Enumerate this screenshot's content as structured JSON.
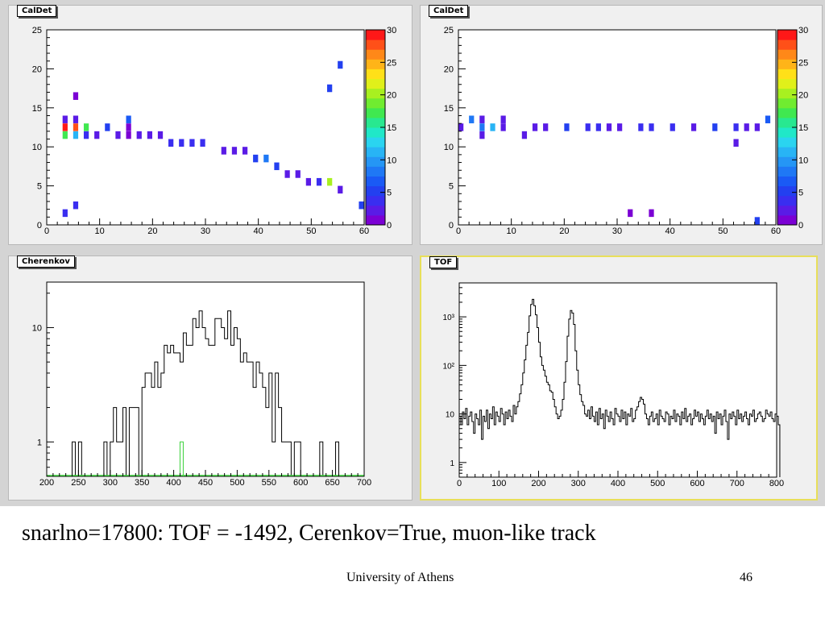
{
  "slide": {
    "caption": "snarlno=17800: TOF = -1492, Cerenkov=True, muon-like track",
    "institution": "University of Athens",
    "page_number": "46"
  },
  "chart_data": [
    {
      "type": "heatmap",
      "pad_title": "CalDet",
      "xlim": [
        0,
        60
      ],
      "ylim": [
        0,
        25
      ],
      "zlim": [
        0,
        30
      ],
      "x_ticks": [
        "0",
        "10",
        "20",
        "30",
        "40",
        "50",
        "60"
      ],
      "y_ticks": [
        "0",
        "5",
        "10",
        "15",
        "20",
        "25"
      ],
      "z_ticks": [
        "0",
        "5",
        "10",
        "15",
        "20",
        "25",
        "30"
      ],
      "palette": [
        "#7b00d4",
        "#5a1be6",
        "#3a2ef0",
        "#2340f0",
        "#1a5af5",
        "#1f78f5",
        "#2596f5",
        "#28b4f5",
        "#2ad4f0",
        "#20e8c8",
        "#28e890",
        "#40e850",
        "#70ec30",
        "#a8f020",
        "#e0f01a",
        "#ffe018",
        "#ffb418",
        "#ff8818",
        "#ff5018",
        "#ff1818"
      ],
      "cells": [
        {
          "x": 3.5,
          "y": 1.5,
          "z": 4
        },
        {
          "x": 5.5,
          "y": 2.5,
          "z": 4
        },
        {
          "x": 3.5,
          "y": 11.5,
          "z": 18
        },
        {
          "x": 3.5,
          "y": 12.5,
          "z": 30
        },
        {
          "x": 3.5,
          "y": 13.5,
          "z": 3
        },
        {
          "x": 5.5,
          "y": 11.5,
          "z": 12
        },
        {
          "x": 5.5,
          "y": 12.5,
          "z": 28
        },
        {
          "x": 5.5,
          "y": 13.5,
          "z": 3
        },
        {
          "x": 5.5,
          "y": 16.5,
          "z": 1
        },
        {
          "x": 7.5,
          "y": 11.5,
          "z": 4
        },
        {
          "x": 7.5,
          "y": 12.5,
          "z": 18
        },
        {
          "x": 9.5,
          "y": 11.5,
          "z": 3
        },
        {
          "x": 11.5,
          "y": 12.5,
          "z": 5
        },
        {
          "x": 13.5,
          "y": 11.5,
          "z": 2
        },
        {
          "x": 15.5,
          "y": 11.5,
          "z": 1
        },
        {
          "x": 15.5,
          "y": 12.5,
          "z": 1
        },
        {
          "x": 15.5,
          "y": 13.5,
          "z": 7
        },
        {
          "x": 17.5,
          "y": 11.5,
          "z": 3
        },
        {
          "x": 19.5,
          "y": 11.5,
          "z": 3
        },
        {
          "x": 21.5,
          "y": 11.5,
          "z": 2
        },
        {
          "x": 23.5,
          "y": 10.5,
          "z": 4
        },
        {
          "x": 25.5,
          "y": 10.5,
          "z": 4
        },
        {
          "x": 27.5,
          "y": 10.5,
          "z": 4
        },
        {
          "x": 29.5,
          "y": 10.5,
          "z": 4
        },
        {
          "x": 33.5,
          "y": 9.5,
          "z": 3
        },
        {
          "x": 35.5,
          "y": 9.5,
          "z": 3
        },
        {
          "x": 37.5,
          "y": 9.5,
          "z": 3
        },
        {
          "x": 39.5,
          "y": 8.5,
          "z": 5
        },
        {
          "x": 41.5,
          "y": 8.5,
          "z": 8
        },
        {
          "x": 43.5,
          "y": 7.5,
          "z": 5
        },
        {
          "x": 45.5,
          "y": 6.5,
          "z": 3
        },
        {
          "x": 47.5,
          "y": 6.5,
          "z": 3
        },
        {
          "x": 49.5,
          "y": 5.5,
          "z": 2
        },
        {
          "x": 51.5,
          "y": 5.5,
          "z": 4
        },
        {
          "x": 53.5,
          "y": 5.5,
          "z": 20
        },
        {
          "x": 55.5,
          "y": 4.5,
          "z": 3
        },
        {
          "x": 59.5,
          "y": 2.5,
          "z": 6
        },
        {
          "x": 53.5,
          "y": 17.5,
          "z": 5
        },
        {
          "x": 55.5,
          "y": 20.5,
          "z": 5
        }
      ]
    },
    {
      "type": "heatmap",
      "pad_title": "CalDet",
      "xlim": [
        0,
        60
      ],
      "ylim": [
        0,
        25
      ],
      "zlim": [
        0,
        30
      ],
      "x_ticks": [
        "0",
        "10",
        "20",
        "30",
        "40",
        "50",
        "60"
      ],
      "y_ticks": [
        "0",
        "5",
        "10",
        "15",
        "20",
        "25"
      ],
      "z_ticks": [
        "0",
        "5",
        "10",
        "15",
        "20",
        "25",
        "30"
      ],
      "cells": [
        {
          "x": 0.5,
          "y": 12.5,
          "z": 3
        },
        {
          "x": 2.5,
          "y": 13.5,
          "z": 9
        },
        {
          "x": 4.5,
          "y": 11.5,
          "z": 3
        },
        {
          "x": 4.5,
          "y": 12.5,
          "z": 9
        },
        {
          "x": 4.5,
          "y": 13.5,
          "z": 2
        },
        {
          "x": 6.5,
          "y": 12.5,
          "z": 12
        },
        {
          "x": 8.5,
          "y": 12.5,
          "z": 2
        },
        {
          "x": 8.5,
          "y": 13.5,
          "z": 2
        },
        {
          "x": 12.5,
          "y": 11.5,
          "z": 2
        },
        {
          "x": 14.5,
          "y": 12.5,
          "z": 3
        },
        {
          "x": 16.5,
          "y": 12.5,
          "z": 3
        },
        {
          "x": 20.5,
          "y": 12.5,
          "z": 6
        },
        {
          "x": 24.5,
          "y": 12.5,
          "z": 4
        },
        {
          "x": 26.5,
          "y": 12.5,
          "z": 4
        },
        {
          "x": 28.5,
          "y": 12.5,
          "z": 2
        },
        {
          "x": 30.5,
          "y": 12.5,
          "z": 3
        },
        {
          "x": 34.5,
          "y": 12.5,
          "z": 4
        },
        {
          "x": 36.5,
          "y": 12.5,
          "z": 4
        },
        {
          "x": 40.5,
          "y": 12.5,
          "z": 4
        },
        {
          "x": 44.5,
          "y": 12.5,
          "z": 2
        },
        {
          "x": 48.5,
          "y": 12.5,
          "z": 6
        },
        {
          "x": 52.5,
          "y": 12.5,
          "z": 4
        },
        {
          "x": 54.5,
          "y": 12.5,
          "z": 2
        },
        {
          "x": 56.5,
          "y": 12.5,
          "z": 2
        },
        {
          "x": 58.5,
          "y": 13.5,
          "z": 7
        },
        {
          "x": 52.5,
          "y": 10.5,
          "z": 3
        },
        {
          "x": 32.5,
          "y": 1.5,
          "z": 1
        },
        {
          "x": 36.5,
          "y": 1.5,
          "z": 1
        },
        {
          "x": 56.5,
          "y": 0.5,
          "z": 5
        }
      ]
    },
    {
      "type": "line",
      "pad_title": "Cherenkov",
      "xlim": [
        200,
        700
      ],
      "ylim": [
        0.5,
        25
      ],
      "log_y": true,
      "x_ticks": [
        "200",
        "250",
        "300",
        "350",
        "400",
        "450",
        "500",
        "550",
        "600",
        "650",
        "700"
      ],
      "y_ticks": [
        "1",
        "10"
      ],
      "bin_width": 5,
      "series": [
        {
          "color": "#000000",
          "x": [
            235,
            240,
            245,
            250,
            255,
            260,
            265,
            270,
            275,
            280,
            285,
            290,
            295,
            300,
            305,
            310,
            315,
            320,
            325,
            330,
            335,
            340,
            345,
            350,
            355,
            360,
            365,
            370,
            375,
            380,
            385,
            390,
            395,
            400,
            405,
            410,
            415,
            420,
            425,
            430,
            435,
            440,
            445,
            450,
            455,
            460,
            465,
            470,
            475,
            480,
            485,
            490,
            495,
            500,
            505,
            510,
            515,
            520,
            525,
            530,
            535,
            540,
            545,
            550,
            555,
            560,
            565,
            570,
            575,
            580,
            585,
            590,
            595,
            600,
            605,
            610,
            615,
            620,
            625,
            630,
            635,
            640,
            645,
            650,
            655,
            660,
            665,
            670,
            675
          ],
          "values": [
            0,
            1,
            0,
            1,
            0,
            0,
            0,
            0,
            0,
            0,
            0,
            1,
            0,
            1,
            2,
            1,
            1,
            2,
            0,
            2,
            2,
            2,
            0,
            3,
            4,
            4,
            3,
            5,
            3,
            4,
            7,
            6,
            7,
            6,
            6,
            5,
            9,
            7,
            7,
            12,
            10,
            14,
            10,
            8,
            7,
            7,
            12,
            12,
            10,
            8,
            14,
            7,
            10,
            8,
            5,
            6,
            5,
            5,
            3,
            5,
            4,
            3,
            2,
            4,
            1,
            4,
            2,
            1,
            1,
            1,
            0,
            1,
            1,
            0,
            0,
            0,
            0,
            0,
            0,
            1,
            0,
            0,
            0,
            0,
            1,
            0,
            0,
            0,
            0
          ]
        },
        {
          "color": "#3ad13a",
          "x": [
            410
          ],
          "values": [
            1
          ]
        }
      ]
    },
    {
      "type": "line",
      "pad_title": "TOF",
      "xlim": [
        0,
        800
      ],
      "ylim": [
        0.5,
        5000
      ],
      "log_y": true,
      "x_ticks": [
        "0",
        "100",
        "200",
        "300",
        "400",
        "500",
        "600",
        "700",
        "800"
      ],
      "y_ticks": [
        "1",
        "10",
        "10²",
        "10³"
      ],
      "bin_width": 4,
      "series": [
        {
          "color": "#000000",
          "values": [
            9,
            6,
            11,
            8,
            13,
            6,
            9,
            11,
            7,
            4,
            10,
            8,
            6,
            12,
            3,
            9,
            7,
            12,
            5,
            10,
            8,
            14,
            6,
            11,
            9,
            7,
            13,
            10,
            6,
            11,
            8,
            12,
            9,
            7,
            15,
            10,
            14,
            18,
            26,
            40,
            70,
            130,
            260,
            480,
            1050,
            1800,
            2300,
            1700,
            1100,
            600,
            300,
            150,
            100,
            80,
            60,
            45,
            40,
            30,
            28,
            20,
            14,
            10,
            8,
            9,
            12,
            20,
            45,
            120,
            400,
            900,
            1350,
            1200,
            700,
            200,
            80,
            40,
            25,
            18,
            15,
            10,
            9,
            12,
            8,
            14,
            9,
            7,
            11,
            6,
            13,
            8,
            10,
            5,
            12,
            9,
            7,
            11,
            8,
            6,
            13,
            10,
            9,
            7,
            12,
            8,
            11,
            6,
            10,
            9,
            13,
            7,
            8,
            12,
            14,
            18,
            22,
            20,
            16,
            10,
            8,
            6,
            9,
            11,
            7,
            8,
            10,
            6,
            12,
            9,
            8,
            7,
            11,
            10,
            6,
            9,
            8,
            12,
            7,
            10,
            9,
            6,
            11,
            8,
            13,
            7,
            9,
            10,
            6,
            8,
            12,
            9,
            11,
            7,
            10,
            8,
            6,
            9,
            12,
            8,
            10,
            7,
            9,
            4,
            11,
            8,
            10,
            6,
            9,
            12,
            7,
            3,
            10,
            8,
            11,
            9,
            6,
            12,
            8,
            10,
            7,
            9,
            11,
            8,
            6,
            10,
            9,
            12,
            7,
            8,
            10,
            11,
            9,
            7,
            8,
            12,
            10,
            9,
            11,
            8,
            7,
            10,
            9,
            6
          ]
        }
      ]
    }
  ]
}
